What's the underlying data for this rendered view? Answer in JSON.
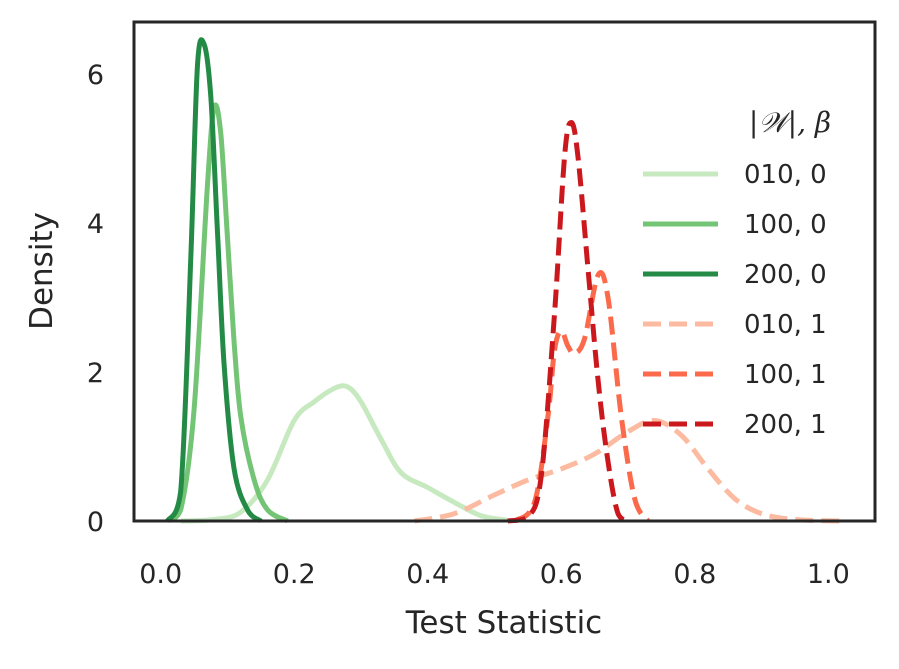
{
  "chart_data": {
    "type": "line",
    "title": "",
    "xlabel": "Test Statistic",
    "ylabel": "Density",
    "xlim": [
      -0.04,
      1.07
    ],
    "ylim": [
      0,
      6.7
    ],
    "xticks": [
      "0.0",
      "0.2",
      "0.4",
      "0.6",
      "0.8",
      "1.0"
    ],
    "yticks": [
      "0",
      "2",
      "4",
      "6"
    ],
    "grid": false,
    "legend": {
      "title": "|𝒲|, β",
      "placement": "right"
    },
    "series": [
      {
        "name": "010, 0",
        "color": "#c7e9c0",
        "dash": "solid",
        "x": [
          0.03,
          0.08,
          0.12,
          0.16,
          0.2,
          0.23,
          0.26,
          0.28,
          0.3,
          0.33,
          0.36,
          0.4,
          0.44,
          0.48,
          0.52
        ],
        "y": [
          0.0,
          0.02,
          0.12,
          0.55,
          1.35,
          1.6,
          1.78,
          1.8,
          1.6,
          1.1,
          0.65,
          0.45,
          0.25,
          0.07,
          0.01
        ]
      },
      {
        "name": "100, 0",
        "color": "#74c476",
        "dash": "solid",
        "x": [
          0.01,
          0.03,
          0.05,
          0.07,
          0.08,
          0.09,
          0.1,
          0.11,
          0.12,
          0.14,
          0.16,
          0.19
        ],
        "y": [
          0.0,
          0.15,
          1.5,
          4.5,
          5.55,
          5.2,
          3.8,
          2.4,
          1.4,
          0.55,
          0.15,
          0.0
        ]
      },
      {
        "name": "200, 0",
        "color": "#238b45",
        "dash": "solid",
        "x": [
          0.01,
          0.03,
          0.045,
          0.055,
          0.065,
          0.075,
          0.085,
          0.095,
          0.11,
          0.13,
          0.15
        ],
        "y": [
          0.0,
          0.4,
          3.5,
          6.1,
          6.4,
          5.7,
          3.9,
          2.1,
          0.7,
          0.15,
          0.0
        ]
      },
      {
        "name": "010, 1",
        "color": "#fcbba1",
        "dash": "dashed",
        "x": [
          0.38,
          0.44,
          0.5,
          0.55,
          0.6,
          0.65,
          0.7,
          0.74,
          0.78,
          0.82,
          0.86,
          0.9,
          0.95,
          1.02
        ],
        "y": [
          0.0,
          0.1,
          0.35,
          0.55,
          0.7,
          0.9,
          1.2,
          1.35,
          1.15,
          0.7,
          0.3,
          0.1,
          0.02,
          0.0
        ]
      },
      {
        "name": "100, 1",
        "color": "#fb6a4a",
        "dash": "dashed",
        "x": [
          0.53,
          0.56,
          0.58,
          0.59,
          0.6,
          0.61,
          0.62,
          0.635,
          0.655,
          0.67,
          0.69,
          0.71,
          0.73
        ],
        "y": [
          0.0,
          0.25,
          1.4,
          2.3,
          2.55,
          2.35,
          2.25,
          2.45,
          3.3,
          3.0,
          1.4,
          0.3,
          0.0
        ]
      },
      {
        "name": "200, 1",
        "color": "#cb181d",
        "dash": "dashed",
        "x": [
          0.52,
          0.55,
          0.57,
          0.59,
          0.605,
          0.615,
          0.625,
          0.64,
          0.655,
          0.67,
          0.685,
          0.7
        ],
        "y": [
          0.0,
          0.05,
          0.6,
          2.8,
          4.9,
          5.35,
          4.9,
          3.4,
          1.9,
          0.8,
          0.1,
          0.0
        ]
      }
    ]
  }
}
